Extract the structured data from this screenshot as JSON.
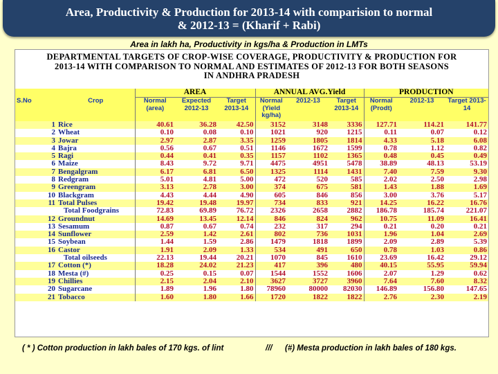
{
  "banner": {
    "line1": "Area, Productivity & Production for 2013-14 with comparision to normal",
    "line2": "& 2012-13 = (Kharif + Rabi)"
  },
  "subtitle": "Area in lakh ha, Productivity in kgs/ha & Production in  LMTs",
  "sheet_title": {
    "line1": "DEPARTMENTAL  TARGETS OF CROP-WISE COVERAGE, PRODUCTIVITY & PRODUCTION FOR",
    "line2": "2013-14 WITH COMPARISON TO NORMAL AND   ESTIMATES OF 2012-13  FOR BOTH SEASONS",
    "line3": "IN ANDHRA PRADESH"
  },
  "groups": {
    "area": "AREA",
    "yield": "ANNUAL AVG.Yield",
    "production": "PRODUCTION"
  },
  "headers": {
    "sno": "S.No",
    "crop": "Crop",
    "area_normal": "Normal (area)",
    "area_expected": "Expected 2012-13",
    "area_target": "Target 2013-14",
    "yield_normal": "Normal (Yield kg/ha)",
    "yield_2012": "2012-13",
    "yield_target": "Target 2013-14",
    "prod_normal": "Normal (Prodt)",
    "prod_2012": "2012-13",
    "prod_target": "Target 2013-14"
  },
  "rows": [
    {
      "sno": "1",
      "crop": "Rice",
      "v": [
        "40.61",
        "36.28",
        "42.50",
        "3152",
        "3148",
        "3336",
        "127.71",
        "114.21",
        "141.77"
      ]
    },
    {
      "sno": "2",
      "crop": "Wheat",
      "v": [
        "0.10",
        "0.08",
        "0.10",
        "1021",
        "920",
        "1215",
        "0.11",
        "0.07",
        "0.12"
      ]
    },
    {
      "sno": "3",
      "crop": "Jowar",
      "v": [
        "2.97",
        "2.87",
        "3.35",
        "1259",
        "1805",
        "1814",
        "4.33",
        "5.18",
        "6.08"
      ]
    },
    {
      "sno": "4",
      "crop": "Bajra",
      "v": [
        "0.56",
        "0.67",
        "0.51",
        "1146",
        "1672",
        "1599",
        "0.78",
        "1.12",
        "0.82"
      ]
    },
    {
      "sno": "5",
      "crop": "Ragi",
      "v": [
        "0.44",
        "0.41",
        "0.35",
        "1157",
        "1102",
        "1365",
        "0.48",
        "0.45",
        "0.49"
      ]
    },
    {
      "sno": "6",
      "crop": "Maize",
      "v": [
        "8.43",
        "9.72",
        "9.71",
        "4475",
        "4951",
        "5478",
        "38.89",
        "48.13",
        "53.19"
      ]
    },
    {
      "sno": "7",
      "crop": "Bengalgram",
      "v": [
        "6.17",
        "6.81",
        "6.50",
        "1325",
        "1114",
        "1431",
        "7.40",
        "7.59",
        "9.30"
      ]
    },
    {
      "sno": "8",
      "crop": "Redgram",
      "v": [
        "5.01",
        "4.81",
        "5.00",
        "472",
        "520",
        "585",
        "2.02",
        "2.50",
        "2.98"
      ]
    },
    {
      "sno": "9",
      "crop": "Greengram",
      "v": [
        "3.13",
        "2.78",
        "3.00",
        "374",
        "675",
        "581",
        "1.43",
        "1.88",
        "1.69"
      ]
    },
    {
      "sno": "10",
      "crop": "Blackgram",
      "v": [
        "4.43",
        "4.44",
        "4.90",
        "605",
        "846",
        "856",
        "3.00",
        "3.76",
        "5.17"
      ]
    },
    {
      "sno": "11",
      "crop": "Total Pulses",
      "v": [
        "19.42",
        "19.48",
        "19.97",
        "734",
        "833",
        "921",
        "14.25",
        "16.22",
        "16.76"
      ]
    },
    {
      "sno": "",
      "crop": "Total Foodgrains",
      "v": [
        "72.83",
        "69.89",
        "76.72",
        "2326",
        "2658",
        "2882",
        "186.78",
        "185.74",
        "221.07"
      ]
    },
    {
      "sno": "12",
      "crop": "Groundnut",
      "v": [
        "14.69",
        "13.45",
        "12.14",
        "846",
        "824",
        "962",
        "10.75",
        "11.09",
        "16.41"
      ]
    },
    {
      "sno": "13",
      "crop": "Sesamum",
      "v": [
        "0.87",
        "0.67",
        "0.74",
        "232",
        "317",
        "294",
        "0.21",
        "0.20",
        "0.21"
      ]
    },
    {
      "sno": "14",
      "crop": "Sunflower",
      "v": [
        "2.59",
        "1.42",
        "2.61",
        "802",
        "736",
        "1031",
        "1.96",
        "1.04",
        "2.69"
      ]
    },
    {
      "sno": "15",
      "crop": "Soybean",
      "v": [
        "1.44",
        "1.59",
        "2.86",
        "1479",
        "1818",
        "1899",
        "2.09",
        "2.89",
        "5.39"
      ]
    },
    {
      "sno": "16",
      "crop": "Castor",
      "v": [
        "1.91",
        "2.09",
        "1.33",
        "534",
        "491",
        "650",
        "0.78",
        "1.03",
        "0.86"
      ]
    },
    {
      "sno": "",
      "crop": "Total oilseeds",
      "v": [
        "22.13",
        "19.44",
        "20.21",
        "1070",
        "845",
        "1610",
        "23.69",
        "16.42",
        "29.12"
      ]
    },
    {
      "sno": "17",
      "crop": "Cotton (*)",
      "v": [
        "18.28",
        "24.02",
        "21.23",
        "417",
        "396",
        "480",
        "40.15",
        "55.95",
        "59.94"
      ]
    },
    {
      "sno": "18",
      "crop": "Mesta (#)",
      "v": [
        "0.25",
        "0.15",
        "0.07",
        "1544",
        "1552",
        "1606",
        "2.07",
        "1.29",
        "0.62"
      ]
    },
    {
      "sno": "19",
      "crop": "Chillies",
      "v": [
        "2.15",
        "2.04",
        "2.10",
        "3627",
        "3727",
        "3960",
        "7.64",
        "7.60",
        "8.32"
      ]
    },
    {
      "sno": "20",
      "crop": "Sugarcane",
      "v": [
        "1.89",
        "1.96",
        "1.80",
        "78960",
        "80000",
        "82030",
        "146.89",
        "156.80",
        "147.65"
      ]
    },
    {
      "sno": "21",
      "crop": "Tobacco",
      "v": [
        "1.60",
        "1.80",
        "1.66",
        "1720",
        "1822",
        "1822",
        "2.76",
        "2.30",
        "2.19"
      ]
    }
  ],
  "footnote": {
    "left": "( * ) Cotton production in lakh bales of 170 kgs. of lint",
    "sep": "///",
    "right": "(#) Mesta production in lakh bales of 180 kgs."
  }
}
